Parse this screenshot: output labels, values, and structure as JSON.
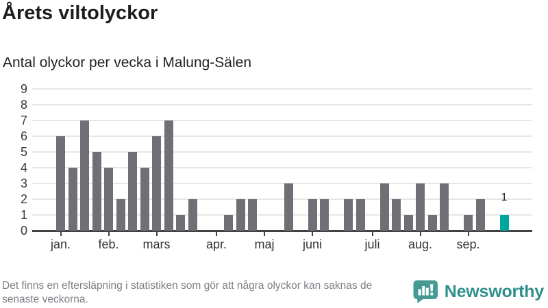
{
  "header": {
    "title": "Årets viltolyckor",
    "subtitle": "Antal olyckor per vecka i Malung-Sälen"
  },
  "chart_data": {
    "type": "bar",
    "title": "Årets viltolyckor",
    "subtitle": "Antal olyckor per vecka i Malung-Sälen",
    "x_unit": "vecka",
    "values": [
      6,
      4,
      7,
      5,
      4,
      2,
      5,
      4,
      6,
      7,
      1,
      2,
      0,
      0,
      1,
      2,
      2,
      0,
      0,
      3,
      0,
      2,
      2,
      0,
      2,
      2,
      0,
      3,
      2,
      1,
      3,
      1,
      3,
      0,
      1,
      2,
      0,
      1
    ],
    "highlight_index": 37,
    "highlight_value_label": "1",
    "x_ticks": [
      {
        "label": "jan.",
        "week": 0
      },
      {
        "label": "feb.",
        "week": 4
      },
      {
        "label": "mars",
        "week": 8
      },
      {
        "label": "apr.",
        "week": 13
      },
      {
        "label": "maj",
        "week": 17
      },
      {
        "label": "juni",
        "week": 21
      },
      {
        "label": "juli",
        "week": 26
      },
      {
        "label": "aug.",
        "week": 30
      },
      {
        "label": "sep.",
        "week": 34
      }
    ],
    "y_ticks": [
      0,
      1,
      2,
      3,
      4,
      5,
      6,
      7,
      8,
      9
    ],
    "ylim": [
      0,
      9
    ],
    "grid": true,
    "legend": null,
    "colors": {
      "bar": "#706f75",
      "highlight": "#00a69b",
      "gridline": "#e6e6e6",
      "baseline": "#414141"
    }
  },
  "footer": {
    "note": "Det finns en eftersläpning i statistiken som gör att några olyckor kan saknas de senaste veckorna.",
    "brand": "Newsworthy",
    "brand_color": "#2f908a",
    "icon": "newsworthy-bars-exclamation-bubble"
  }
}
